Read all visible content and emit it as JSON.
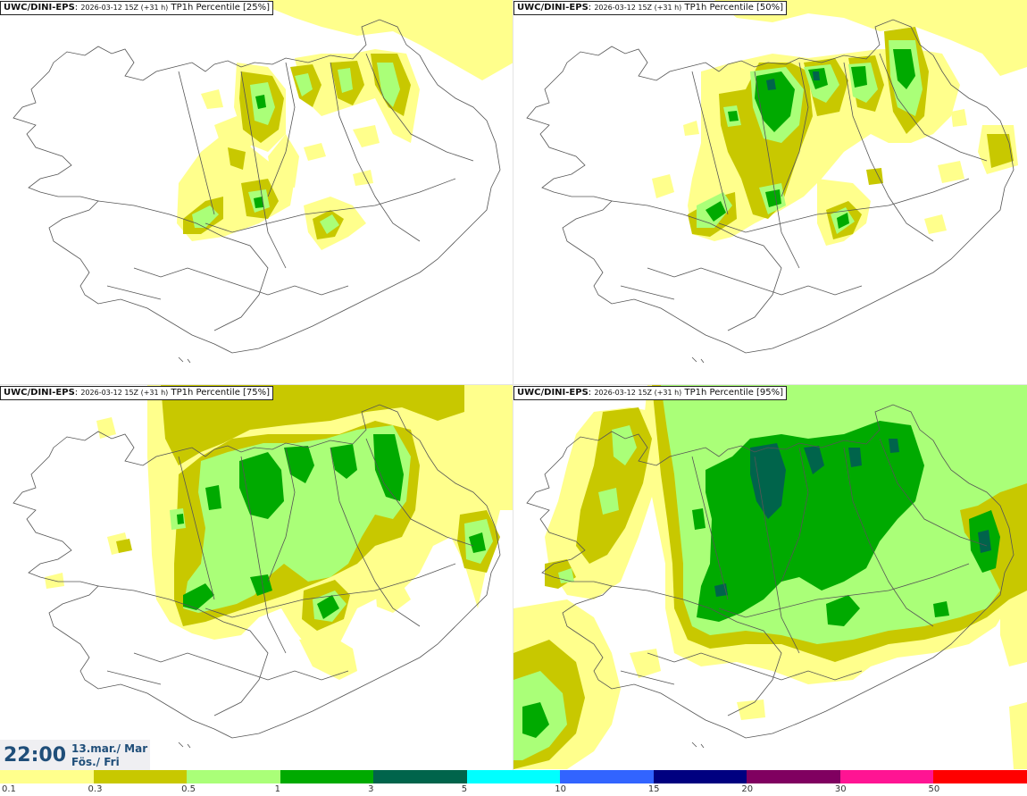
{
  "colors": {
    "c01": "#ffff8c",
    "c03": "#c8c800",
    "c05": "#aaff78",
    "c1": "#00aa00",
    "c3": "#00644b",
    "c5": "#00ffff",
    "c10": "#3264ff",
    "c15": "#000080",
    "c20": "#800060",
    "c30": "#ff1493",
    "c50": "#ff0000",
    "coast": "#555555"
  },
  "panels": [
    {
      "source": "UWC/DINI-EPS",
      "run": "2026-03-12 15Z (+31 h)",
      "field": "TP1h Percentile [25%]"
    },
    {
      "source": "UWC/DINI-EPS",
      "run": "2026-03-12 15Z (+31 h)",
      "field": "TP1h Percentile [50%]"
    },
    {
      "source": "UWC/DINI-EPS",
      "run": "2026-03-12 15Z (+31 h)",
      "field": "TP1h Percentile [75%]"
    },
    {
      "source": "UWC/DINI-EPS",
      "run": "2026-03-12 15Z (+31 h)",
      "field": "TP1h Percentile [95%]"
    }
  ],
  "valid_time": {
    "time": "22:00",
    "date": "13.mar./ Mar",
    "day": "Fös./ Fri"
  },
  "colorbar": {
    "segments": [
      {
        "label": "0.1",
        "color": "#ffff8c"
      },
      {
        "label": "0.3",
        "color": "#c8c800"
      },
      {
        "label": "0.5",
        "color": "#aaff78"
      },
      {
        "label": "1",
        "color": "#00aa00"
      },
      {
        "label": "3",
        "color": "#00644b"
      },
      {
        "label": "5",
        "color": "#00ffff"
      },
      {
        "label": "10",
        "color": "#3264ff"
      },
      {
        "label": "15",
        "color": "#000080"
      },
      {
        "label": "20",
        "color": "#800060"
      },
      {
        "label": "30",
        "color": "#ff1493"
      },
      {
        "label": "50",
        "color": "#ff0000"
      }
    ]
  }
}
